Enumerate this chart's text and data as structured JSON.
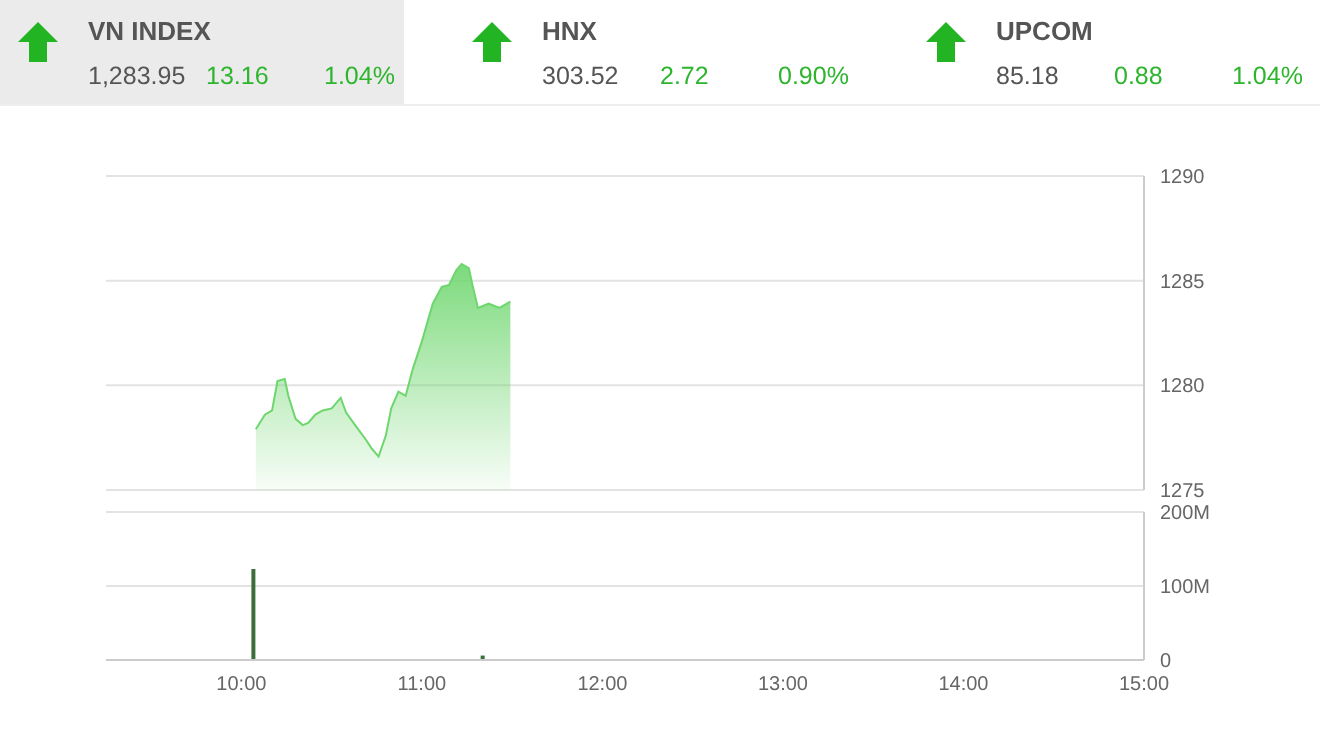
{
  "chart_data": [
    {
      "type": "other",
      "annotations": [
        "VN INDEX",
        "1,283.95",
        "13.16",
        "1.04%",
        "HNX",
        "303.52",
        "2.72",
        "0.90%",
        "UPCOM",
        "85.18",
        "0.88",
        "1.04%"
      ]
    },
    {
      "type": "area",
      "tick_labels": "y",
      "grid": "y",
      "xlim": [
        9.25,
        15
      ],
      "ylim": [
        1275,
        1290
      ],
      "yticks": [
        1275,
        1280,
        1285,
        1290
      ],
      "x": [
        10.08,
        10.13,
        10.17,
        10.2,
        10.24,
        10.26,
        10.3,
        10.34,
        10.37,
        10.41,
        10.45,
        10.5,
        10.55,
        10.58,
        10.63,
        10.69,
        10.72,
        10.76,
        10.8,
        10.83,
        10.87,
        10.91,
        10.95,
        11.0,
        11.06,
        11.11,
        11.15,
        11.19,
        11.22,
        11.26,
        11.28,
        11.31,
        11.37,
        11.43,
        11.49
      ],
      "series": [
        {
          "color": "#6dd66d",
          "values": [
            1277.9,
            1278.6,
            1278.8,
            1280.2,
            1280.3,
            1279.5,
            1278.4,
            1278.1,
            1278.2,
            1278.6,
            1278.8,
            1278.9,
            1279.4,
            1278.7,
            1278.1,
            1277.4,
            1277.0,
            1276.6,
            1277.6,
            1278.9,
            1279.7,
            1279.5,
            1280.8,
            1282.1,
            1283.9,
            1284.7,
            1284.8,
            1285.5,
            1285.8,
            1285.6,
            1284.8,
            1283.7,
            1283.9,
            1283.7,
            1284.0
          ]
        }
      ]
    },
    {
      "type": "bar",
      "grid": "y",
      "xlim": [
        9.25,
        15
      ],
      "xticks": [
        {
          "value": 10,
          "label": "10:00"
        },
        {
          "value": 11,
          "label": "11:00"
        },
        {
          "value": 12,
          "label": "12:00"
        },
        {
          "value": 13,
          "label": "13:00"
        },
        {
          "value": 14,
          "label": "14:00"
        },
        {
          "value": 15,
          "label": "15:00"
        }
      ],
      "ylim": [
        0,
        200
      ],
      "yticks": [
        {
          "value": 0,
          "label": "0"
        },
        {
          "value": 100,
          "label": "100M"
        },
        {
          "value": 200,
          "label": "200M"
        }
      ],
      "x": [
        10.07,
        11.34
      ],
      "series": [
        {
          "color": "#3a6e3a",
          "values": [
            123,
            6
          ]
        }
      ]
    }
  ]
}
